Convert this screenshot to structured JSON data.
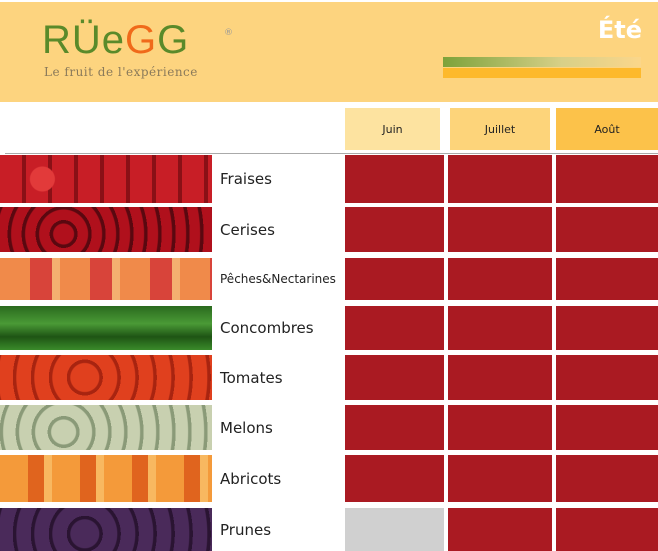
{
  "header": {
    "brand": "RÜEGG",
    "brand_mark": "®",
    "tagline": "Le fruit de l'expérience",
    "season": "Été"
  },
  "months": [
    "Juin",
    "Juillet",
    "Août"
  ],
  "colors": {
    "available": "#aa1a22",
    "unavailable": "#d0d0d0",
    "header": "#fdd47f"
  },
  "rows": [
    {
      "label": "Fraises",
      "availability": [
        true,
        true,
        true
      ]
    },
    {
      "label": "Cerises",
      "availability": [
        true,
        true,
        true
      ]
    },
    {
      "label": "Pêches&Nectarines",
      "availability": [
        true,
        true,
        true
      ]
    },
    {
      "label": "Concombres",
      "availability": [
        true,
        true,
        true
      ]
    },
    {
      "label": "Tomates",
      "availability": [
        true,
        true,
        true
      ]
    },
    {
      "label": "Melons",
      "availability": [
        true,
        true,
        true
      ]
    },
    {
      "label": "Abricots",
      "availability": [
        true,
        true,
        true
      ]
    },
    {
      "label": "Prunes",
      "availability": [
        false,
        true,
        true
      ]
    }
  ]
}
